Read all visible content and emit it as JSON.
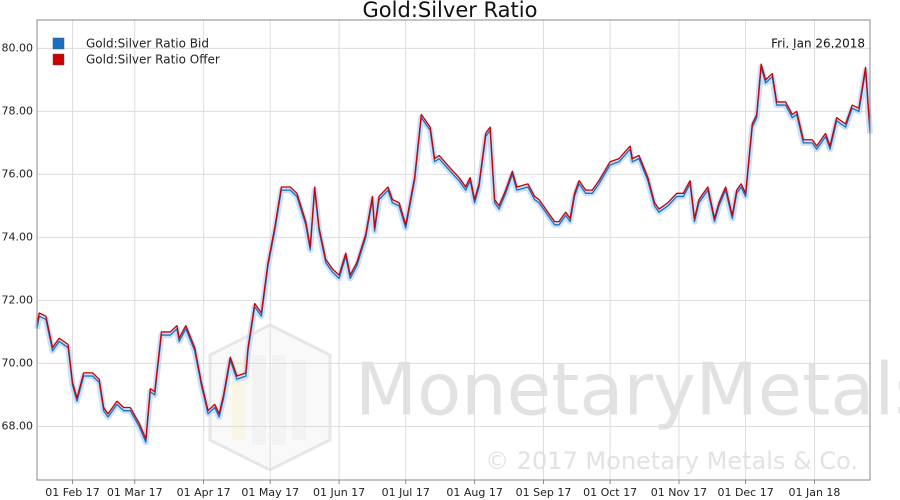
{
  "chart_data": {
    "type": "line",
    "title": "Gold:Silver Ratio",
    "annotation": "Fri, Jan 26,2018",
    "watermark": "MonetaryMetals",
    "copyright": "© 2017 Monetary Metals & Co.",
    "grid": true,
    "legend": "upper-left",
    "xlim": [
      "2017-01-16",
      "2018-01-26"
    ],
    "ylim": [
      66.3,
      80.9
    ],
    "yticks": [
      {
        "value": 68,
        "label": "68.00"
      },
      {
        "value": 70,
        "label": "70.00"
      },
      {
        "value": 72,
        "label": "72.00"
      },
      {
        "value": 74,
        "label": "74.00"
      },
      {
        "value": 76,
        "label": "76.00"
      },
      {
        "value": 78,
        "label": "78.00"
      },
      {
        "value": 80,
        "label": "80.00"
      }
    ],
    "xticks": [
      {
        "value": "2017-02-01",
        "label": "01 Feb 17"
      },
      {
        "value": "2017-03-01",
        "label": "01 Mar 17"
      },
      {
        "value": "2017-04-01",
        "label": "01 Apr 17"
      },
      {
        "value": "2017-05-01",
        "label": "01 May 17"
      },
      {
        "value": "2017-06-01",
        "label": "01 Jun 17"
      },
      {
        "value": "2017-07-01",
        "label": "01 Jul 17"
      },
      {
        "value": "2017-08-01",
        "label": "01 Aug 17"
      },
      {
        "value": "2017-09-01",
        "label": "01 Sep 17"
      },
      {
        "value": "2017-10-01",
        "label": "01 Oct 17"
      },
      {
        "value": "2017-11-01",
        "label": "01 Nov 17"
      },
      {
        "value": "2017-12-01",
        "label": "01 Dec 17"
      },
      {
        "value": "2018-01-01",
        "label": "01 Jan 18"
      }
    ],
    "x": [
      "2017-01-16",
      "2017-01-17",
      "2017-01-20",
      "2017-01-23",
      "2017-01-26",
      "2017-01-30",
      "2017-02-01",
      "2017-02-03",
      "2017-02-06",
      "2017-02-10",
      "2017-02-13",
      "2017-02-15",
      "2017-02-17",
      "2017-02-21",
      "2017-02-24",
      "2017-02-27",
      "2017-03-03",
      "2017-03-06",
      "2017-03-08",
      "2017-03-10",
      "2017-03-13",
      "2017-03-17",
      "2017-03-20",
      "2017-03-21",
      "2017-03-24",
      "2017-03-28",
      "2017-03-31",
      "2017-04-03",
      "2017-04-06",
      "2017-04-08",
      "2017-04-10",
      "2017-04-13",
      "2017-04-16",
      "2017-04-20",
      "2017-04-21",
      "2017-04-24",
      "2017-04-27",
      "2017-04-30",
      "2017-05-03",
      "2017-05-06",
      "2017-05-10",
      "2017-05-13",
      "2017-05-17",
      "2017-05-19",
      "2017-05-21",
      "2017-05-23",
      "2017-05-26",
      "2017-05-29",
      "2017-06-01",
      "2017-06-04",
      "2017-06-06",
      "2017-06-09",
      "2017-06-13",
      "2017-06-16",
      "2017-06-17",
      "2017-06-19",
      "2017-06-23",
      "2017-06-25",
      "2017-06-28",
      "2017-07-01",
      "2017-07-05",
      "2017-07-08",
      "2017-07-12",
      "2017-07-14",
      "2017-07-16",
      "2017-07-21",
      "2017-07-25",
      "2017-07-28",
      "2017-07-30",
      "2017-08-01",
      "2017-08-03",
      "2017-08-06",
      "2017-08-08",
      "2017-08-10",
      "2017-08-12",
      "2017-08-15",
      "2017-08-18",
      "2017-08-20",
      "2017-08-25",
      "2017-08-28",
      "2017-08-30",
      "2017-09-03",
      "2017-09-06",
      "2017-09-08",
      "2017-09-11",
      "2017-09-13",
      "2017-09-15",
      "2017-09-17",
      "2017-09-20",
      "2017-09-23",
      "2017-09-26",
      "2017-10-01",
      "2017-10-05",
      "2017-10-10",
      "2017-10-11",
      "2017-10-14",
      "2017-10-18",
      "2017-10-21",
      "2017-10-23",
      "2017-10-27",
      "2017-10-31",
      "2017-11-03",
      "2017-11-06",
      "2017-11-08",
      "2017-11-10",
      "2017-11-14",
      "2017-11-17",
      "2017-11-19",
      "2017-11-22",
      "2017-11-25",
      "2017-11-27",
      "2017-11-29",
      "2017-12-01",
      "2017-12-04",
      "2017-12-06",
      "2017-12-08",
      "2017-12-10",
      "2017-12-13",
      "2017-12-15",
      "2017-12-19",
      "2017-12-22",
      "2017-12-24",
      "2017-12-27",
      "2017-12-31",
      "2018-01-02",
      "2018-01-06",
      "2018-01-08",
      "2018-01-11",
      "2018-01-15",
      "2018-01-18",
      "2018-01-21",
      "2018-01-24",
      "2018-01-26"
    ],
    "series": [
      {
        "name": "Gold:Silver Ratio Bid",
        "color": "#1a6fc4",
        "values": [
          71.1,
          71.5,
          71.4,
          70.4,
          70.7,
          70.5,
          69.3,
          68.8,
          69.6,
          69.6,
          69.4,
          68.5,
          68.3,
          68.7,
          68.5,
          68.5,
          68.0,
          67.5,
          69.1,
          69.0,
          70.9,
          70.9,
          71.1,
          70.7,
          71.1,
          70.4,
          69.3,
          68.4,
          68.6,
          68.3,
          68.9,
          70.1,
          69.5,
          69.6,
          70.4,
          71.8,
          71.5,
          73.1,
          74.2,
          75.5,
          75.5,
          75.3,
          74.4,
          73.6,
          75.5,
          74.2,
          73.2,
          72.9,
          72.7,
          73.4,
          72.7,
          73.1,
          74.0,
          75.2,
          74.2,
          75.2,
          75.5,
          75.1,
          75.0,
          74.3,
          75.8,
          77.8,
          77.4,
          76.4,
          76.5,
          76.1,
          75.8,
          75.5,
          75.8,
          75.1,
          75.6,
          77.2,
          77.4,
          75.1,
          74.9,
          75.4,
          76.0,
          75.5,
          75.6,
          75.2,
          75.1,
          74.7,
          74.4,
          74.4,
          74.7,
          74.5,
          75.3,
          75.7,
          75.4,
          75.4,
          75.7,
          76.3,
          76.4,
          76.8,
          76.4,
          76.5,
          75.8,
          75.0,
          74.8,
          75.0,
          75.3,
          75.3,
          75.7,
          74.5,
          75.1,
          75.5,
          74.5,
          75.0,
          75.5,
          74.6,
          75.4,
          75.6,
          75.3,
          77.5,
          77.8,
          79.4,
          78.9,
          79.1,
          78.2,
          78.2,
          77.8,
          77.9,
          77.0,
          77.0,
          76.8,
          77.2,
          76.8,
          77.7,
          77.5,
          78.1,
          78.0,
          79.3,
          77.3
        ]
      },
      {
        "name": "Gold:Silver Ratio Offer",
        "color": "#cc0000",
        "values": [
          71.2,
          71.6,
          71.5,
          70.5,
          70.8,
          70.6,
          69.4,
          68.9,
          69.7,
          69.7,
          69.5,
          68.6,
          68.4,
          68.8,
          68.6,
          68.6,
          68.1,
          67.6,
          69.2,
          69.1,
          71.0,
          71.0,
          71.2,
          70.8,
          71.2,
          70.5,
          69.4,
          68.5,
          68.7,
          68.4,
          69.0,
          70.2,
          69.6,
          69.7,
          70.5,
          71.9,
          71.6,
          73.2,
          74.3,
          75.6,
          75.6,
          75.4,
          74.5,
          73.7,
          75.6,
          74.3,
          73.3,
          73.0,
          72.8,
          73.5,
          72.8,
          73.2,
          74.1,
          75.3,
          74.3,
          75.3,
          75.6,
          75.2,
          75.1,
          74.4,
          75.9,
          77.9,
          77.5,
          76.5,
          76.6,
          76.2,
          75.9,
          75.6,
          75.9,
          75.2,
          75.7,
          77.3,
          77.5,
          75.2,
          75.0,
          75.5,
          76.1,
          75.6,
          75.7,
          75.3,
          75.2,
          74.8,
          74.5,
          74.5,
          74.8,
          74.6,
          75.4,
          75.8,
          75.5,
          75.5,
          75.8,
          76.4,
          76.5,
          76.9,
          76.5,
          76.6,
          75.9,
          75.1,
          74.9,
          75.1,
          75.4,
          75.4,
          75.8,
          74.6,
          75.2,
          75.6,
          74.6,
          75.1,
          75.6,
          74.7,
          75.5,
          75.7,
          75.4,
          77.6,
          77.9,
          79.5,
          79.0,
          79.2,
          78.3,
          78.3,
          77.9,
          78.0,
          77.1,
          77.1,
          76.9,
          77.3,
          76.9,
          77.8,
          77.6,
          78.2,
          78.1,
          79.4,
          77.4
        ]
      }
    ]
  }
}
